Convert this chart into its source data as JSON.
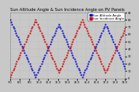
{
  "title": "Sun Altitude Angle & Sun Incidence Angle on PV Panels",
  "legend_labels": [
    "Sun Altitude Angle",
    "Sun Incidence Angle"
  ],
  "legend_colors": [
    "#0000cc",
    "#cc0000"
  ],
  "bg_color": "#c8c8c8",
  "plot_bg": "#c8c8c8",
  "grid_color": "#aaaaaa",
  "blue_x": [
    0,
    1,
    2,
    3,
    4,
    5,
    6,
    7,
    8,
    9,
    10,
    11,
    12,
    13,
    14,
    15,
    16,
    17,
    18,
    19,
    20,
    21,
    22,
    23,
    24,
    25,
    26,
    27,
    28,
    29,
    30,
    31,
    32,
    33,
    34,
    35,
    36,
    37,
    38,
    39,
    40,
    41,
    42,
    43,
    44,
    45,
    46,
    47,
    48,
    49,
    50,
    51,
    52,
    53,
    54,
    55,
    56,
    57,
    58,
    59,
    60,
    61,
    62,
    63,
    64,
    65,
    66,
    67,
    68,
    69,
    70,
    71,
    72,
    73,
    74,
    75,
    76,
    77,
    78,
    79,
    80,
    81,
    82,
    83,
    84,
    85,
    86,
    87,
    88,
    89,
    90,
    91,
    92,
    93,
    94,
    95,
    96,
    97,
    98,
    99,
    100,
    101,
    102,
    103,
    104,
    105,
    106,
    107,
    108,
    109,
    110,
    111,
    112,
    113,
    114,
    115,
    116,
    117,
    118
  ],
  "blue_y": [
    80,
    77,
    74,
    71,
    68,
    65,
    62,
    59,
    56,
    53,
    50,
    47,
    44,
    41,
    38,
    35,
    32,
    29,
    26,
    23,
    20,
    17,
    14,
    11,
    8,
    5,
    2,
    5,
    8,
    11,
    14,
    17,
    20,
    23,
    26,
    29,
    32,
    35,
    38,
    41,
    44,
    47,
    50,
    53,
    56,
    59,
    62,
    65,
    68,
    71,
    74,
    71,
    68,
    65,
    62,
    59,
    56,
    53,
    50,
    47,
    44,
    41,
    38,
    35,
    32,
    29,
    26,
    23,
    20,
    17,
    14,
    11,
    8,
    5,
    2,
    5,
    8,
    11,
    14,
    17,
    20,
    23,
    26,
    29,
    32,
    35,
    38,
    41,
    44,
    47,
    50,
    53,
    56,
    59,
    62,
    65,
    68,
    71,
    74,
    71,
    68,
    65,
    62,
    59,
    56,
    53,
    50,
    47,
    44,
    41,
    38,
    35,
    32,
    29,
    26,
    23,
    20,
    17,
    14
  ],
  "red_x": [
    0,
    1,
    2,
    3,
    4,
    5,
    6,
    7,
    8,
    9,
    10,
    11,
    12,
    13,
    14,
    15,
    16,
    17,
    18,
    19,
    20,
    21,
    22,
    23,
    24,
    25,
    26,
    27,
    28,
    29,
    30,
    31,
    32,
    33,
    34,
    35,
    36,
    37,
    38,
    39,
    40,
    41,
    42,
    43,
    44,
    45,
    46,
    47,
    48,
    49,
    50,
    51,
    52,
    53,
    54,
    55,
    56,
    57,
    58,
    59,
    60,
    61,
    62,
    63,
    64,
    65,
    66,
    67,
    68,
    69,
    70,
    71,
    72,
    73,
    74,
    75,
    76,
    77,
    78,
    79,
    80,
    81,
    82,
    83,
    84,
    85,
    86,
    87,
    88,
    89,
    90,
    91,
    92,
    93,
    94,
    95,
    96,
    97,
    98,
    99,
    100,
    101,
    102,
    103,
    104,
    105,
    106,
    107,
    108,
    109,
    110,
    111,
    112,
    113,
    114,
    115,
    116,
    117,
    118
  ],
  "red_y": [
    2,
    5,
    8,
    11,
    14,
    17,
    20,
    23,
    26,
    29,
    32,
    35,
    38,
    41,
    44,
    47,
    50,
    53,
    56,
    59,
    62,
    65,
    68,
    71,
    74,
    77,
    80,
    77,
    74,
    71,
    68,
    65,
    62,
    59,
    56,
    53,
    50,
    47,
    44,
    41,
    38,
    35,
    32,
    29,
    26,
    23,
    20,
    17,
    14,
    11,
    8,
    11,
    14,
    17,
    20,
    23,
    26,
    29,
    32,
    35,
    38,
    41,
    44,
    47,
    50,
    53,
    56,
    59,
    62,
    65,
    68,
    71,
    74,
    77,
    80,
    77,
    74,
    71,
    68,
    65,
    62,
    59,
    56,
    53,
    50,
    47,
    44,
    41,
    38,
    35,
    32,
    29,
    26,
    23,
    20,
    17,
    14,
    11,
    8,
    11,
    14,
    17,
    20,
    23,
    26,
    29,
    32,
    35,
    38,
    41,
    44,
    47,
    50,
    53,
    56,
    59,
    62,
    65,
    68
  ],
  "xlim": [
    0,
    118
  ],
  "ylim": [
    0,
    90
  ],
  "yticks": [
    0,
    10,
    20,
    30,
    40,
    50,
    60,
    70,
    80,
    90
  ],
  "xtick_labels": [
    "7:0",
    "8:0",
    "9:0",
    "10:0",
    "11:0",
    "12:0",
    "13:0",
    "14:0",
    "15:0",
    "16:0",
    "17:0",
    "18:0",
    "19:0"
  ],
  "xtick_positions": [
    0,
    9.8,
    19.6,
    29.4,
    39.2,
    49,
    58.8,
    68.6,
    78.4,
    88.2,
    98,
    107.8,
    117.6
  ],
  "marker_size": 1.0,
  "title_fontsize": 3.8,
  "tick_fontsize": 2.5,
  "legend_fontsize": 2.8
}
